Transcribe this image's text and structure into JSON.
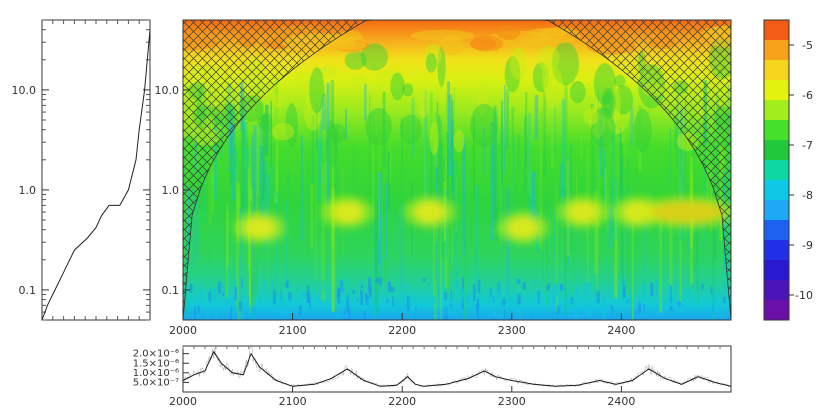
{
  "chart_data": [
    {
      "type": "line",
      "panel": "global-power-spectrum",
      "y_scale": "log",
      "ylim": [
        0.05,
        50
      ],
      "y_ticks": [
        "0.1",
        "1.0",
        "10.0"
      ],
      "x": [
        0.0,
        0.05,
        0.12,
        0.2,
        0.3,
        0.42,
        0.5,
        0.55,
        0.62,
        0.72,
        0.8,
        0.87,
        0.9,
        0.95,
        1.0
      ],
      "y": [
        0.05,
        0.07,
        0.1,
        0.15,
        0.25,
        0.33,
        0.42,
        0.55,
        0.7,
        0.7,
        1.0,
        2.0,
        4.0,
        10.0,
        40.0
      ]
    },
    {
      "type": "heatmap",
      "panel": "wavelet-power-spectrum",
      "xlim": [
        2000,
        2500
      ],
      "x_ticks": [
        "2000",
        "2100",
        "2200",
        "2300",
        "2400"
      ],
      "y_scale": "log",
      "ylim": [
        0.05,
        50
      ],
      "y_ticks": [
        "0.1",
        "1.0",
        "10.0"
      ],
      "hatched_region": "cone of influence",
      "hotspots": [
        {
          "x": 2070,
          "y": 0.42,
          "level": -6.2
        },
        {
          "x": 2150,
          "y": 0.6,
          "level": -6.1
        },
        {
          "x": 2225,
          "y": 0.6,
          "level": -6.3
        },
        {
          "x": 2310,
          "y": 0.42,
          "level": -6.4
        },
        {
          "x": 2365,
          "y": 0.6,
          "level": -6.4
        },
        {
          "x": 2415,
          "y": 0.6,
          "level": -6.2
        },
        {
          "x": 2460,
          "y": 0.6,
          "level": -5.4
        }
      ]
    },
    {
      "type": "colorbar",
      "panel": "power-colorbar",
      "range": [
        -10.5,
        -4.5
      ],
      "ticks": [
        "-5",
        "-6",
        "-7",
        "-8",
        "-9",
        "-10"
      ],
      "colors": [
        "#f25c14",
        "#f7a21a",
        "#f5d41c",
        "#e3f20f",
        "#a2ee1d",
        "#45e02a",
        "#22c83c",
        "#0fd7a2",
        "#0fc7e6",
        "#1ea8f5",
        "#1c62f0",
        "#2130e6",
        "#2a1ad0",
        "#4b14b8",
        "#6a0fa8"
      ]
    },
    {
      "type": "line",
      "panel": "time-series",
      "xlim": [
        2000,
        2500
      ],
      "x_ticks": [
        "2000",
        "2100",
        "2200",
        "2300",
        "2400"
      ],
      "ylim": [
        0,
        2.4e-06
      ],
      "y_ticks": [
        "5.0×10⁻⁷",
        "1.0×10⁻⁶",
        "1.5×10⁻⁶",
        "2.0×10⁻⁶"
      ],
      "x": [
        2000,
        2010,
        2020,
        2028,
        2035,
        2045,
        2055,
        2062,
        2070,
        2085,
        2100,
        2120,
        2135,
        2150,
        2165,
        2180,
        2195,
        2205,
        2212,
        2220,
        2240,
        2260,
        2275,
        2285,
        2300,
        2320,
        2340,
        2360,
        2380,
        2395,
        2410,
        2425,
        2440,
        2455,
        2470,
        2485,
        2500
      ],
      "y": [
        6e-07,
        9e-07,
        1.1e-06,
        2.1e-06,
        1.5e-06,
        1e-06,
        9e-07,
        2e-06,
        1.3e-06,
        6e-07,
        3e-07,
        4e-07,
        7e-07,
        1.2e-06,
        6e-07,
        3e-07,
        3.5e-07,
        8e-07,
        4e-07,
        3e-07,
        4e-07,
        7e-07,
        1.1e-06,
        8e-07,
        6e-07,
        4e-07,
        3e-07,
        3.5e-07,
        6e-07,
        4e-07,
        6e-07,
        1.2e-06,
        7e-07,
        4e-07,
        8e-07,
        5e-07,
        3e-07
      ]
    }
  ]
}
